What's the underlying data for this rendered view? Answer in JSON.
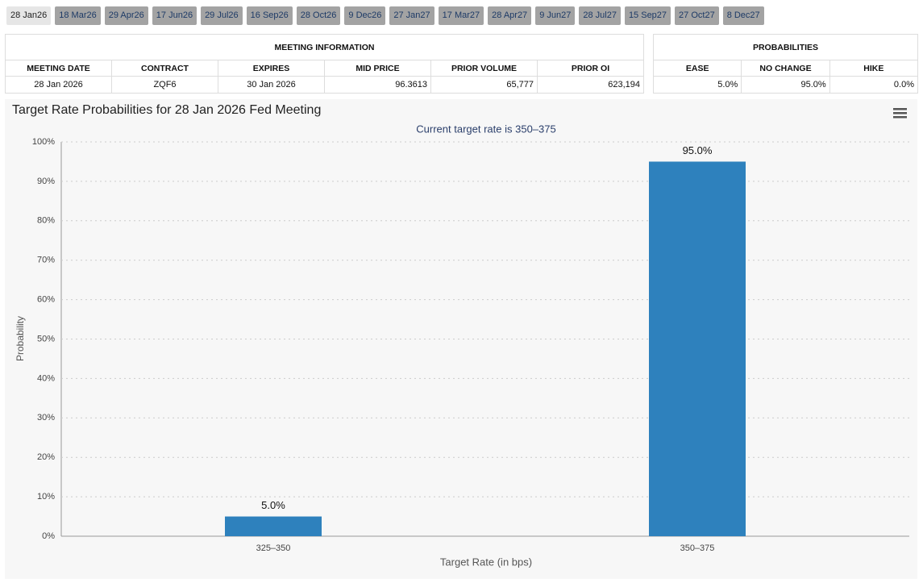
{
  "tabs": [
    "28 Jan26",
    "18 Mar26",
    "29 Apr26",
    "17 Jun26",
    "29 Jul26",
    "16 Sep26",
    "28 Oct26",
    "9 Dec26",
    "27 Jan27",
    "17 Mar27",
    "28 Apr27",
    "9 Jun27",
    "28 Jul27",
    "15 Sep27",
    "27 Oct27",
    "8 Dec27"
  ],
  "meeting_information": {
    "title": "MEETING INFORMATION",
    "columns": [
      "MEETING DATE",
      "CONTRACT",
      "EXPIRES",
      "MID PRICE",
      "PRIOR VOLUME",
      "PRIOR OI"
    ],
    "rows": [
      [
        "28 Jan 2026",
        "ZQF6",
        "30 Jan 2026",
        "96.3613",
        "65,777",
        "623,194"
      ]
    ]
  },
  "probabilities": {
    "title": "PROBABILITIES",
    "columns": [
      "EASE",
      "NO CHANGE",
      "HIKE"
    ],
    "rows": [
      [
        "5.0%",
        "95.0%",
        "0.0%"
      ]
    ]
  },
  "chart_data": {
    "type": "bar",
    "title": "Target Rate Probabilities for 28 Jan 2026 Fed Meeting",
    "subtitle": "Current target rate is 350–375",
    "x_label": "Target Rate (in bps)",
    "y_label": "Probability",
    "categories": [
      "325–350",
      "350–375"
    ],
    "values": [
      5,
      95
    ],
    "value_labels": [
      "5.0%",
      "95.0%"
    ],
    "color": "#2e81bd",
    "ylim": [
      0,
      100
    ],
    "yticks": [
      {
        "value": 0,
        "label": "0%"
      },
      {
        "value": 10,
        "label": "10%"
      },
      {
        "value": 20,
        "label": "20%"
      },
      {
        "value": 30,
        "label": "30%"
      },
      {
        "value": 40,
        "label": "40%"
      },
      {
        "value": 50,
        "label": "50%"
      },
      {
        "value": 60,
        "label": "60%"
      },
      {
        "value": 70,
        "label": "70%"
      },
      {
        "value": 80,
        "label": "80%"
      },
      {
        "value": 90,
        "label": "90%"
      },
      {
        "value": 100,
        "label": "100%"
      }
    ],
    "grid": true
  }
}
